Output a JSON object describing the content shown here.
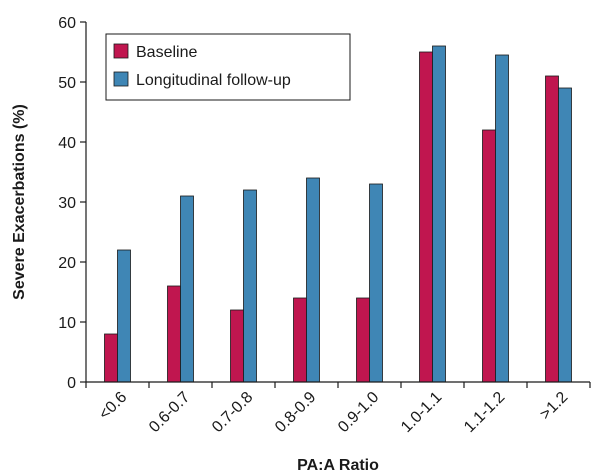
{
  "chart_data": {
    "type": "bar",
    "title": "",
    "xlabel": "PA:A Ratio",
    "ylabel": "Severe Exacerbations (%)",
    "categories": [
      "<0.6",
      "0.6-0.7",
      "0.7-0.8",
      "0.8-0.9",
      "0.9-1.0",
      "1.0-1.1",
      "1.1-1.2",
      ">1.2"
    ],
    "series": [
      {
        "name": "Baseline",
        "color": "#c0164f",
        "values": [
          8,
          16,
          12,
          14,
          14,
          55,
          42,
          51
        ]
      },
      {
        "name": "Longitudinal follow-up",
        "color": "#3f86b5",
        "values": [
          22,
          31,
          32,
          34,
          33,
          56,
          54.5,
          49
        ]
      }
    ],
    "ylim": [
      0,
      60
    ],
    "yticks": [
      0,
      10,
      20,
      30,
      40,
      50,
      60
    ],
    "grid": false,
    "legend_position": "top-left"
  }
}
